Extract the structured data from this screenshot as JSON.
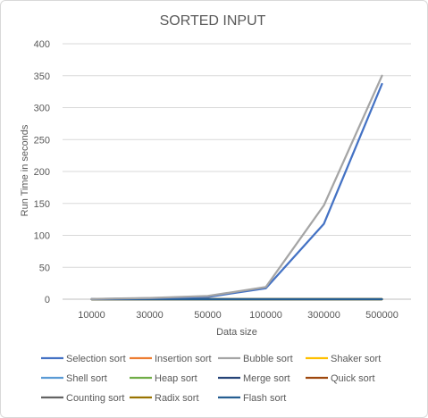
{
  "chart_data": {
    "type": "line",
    "title": "SORTED INPUT",
    "xlabel": "Data size",
    "ylabel": "Run Time in seconds",
    "categories": [
      "10000",
      "30000",
      "50000",
      "100000",
      "300000",
      "500000"
    ],
    "ylim": [
      0,
      400
    ],
    "yticks": [
      0,
      50,
      100,
      150,
      200,
      250,
      300,
      350,
      400
    ],
    "grid": true,
    "legend_position": "bottom",
    "series": [
      {
        "name": "Selection sort",
        "color": "#4472c4",
        "values": [
          0.3,
          1.5,
          3.5,
          17,
          118,
          337
        ]
      },
      {
        "name": "Insertion sort",
        "color": "#ed7d31",
        "values": [
          0,
          0,
          0,
          0,
          0,
          0
        ]
      },
      {
        "name": "Bubble sort",
        "color": "#a5a5a5",
        "values": [
          0.4,
          2,
          5,
          19,
          147,
          350
        ]
      },
      {
        "name": "Shaker sort",
        "color": "#ffc000",
        "values": [
          0,
          0,
          0,
          0,
          0,
          0
        ]
      },
      {
        "name": "Shell sort",
        "color": "#5b9bd5",
        "values": [
          0,
          0,
          0,
          0,
          0,
          0
        ]
      },
      {
        "name": "Heap sort",
        "color": "#70ad47",
        "values": [
          0,
          0,
          0,
          0,
          0,
          0
        ]
      },
      {
        "name": "Merge sort",
        "color": "#264478",
        "values": [
          0,
          0,
          0,
          0,
          0,
          0
        ]
      },
      {
        "name": "Quick sort",
        "color": "#9e480e",
        "values": [
          0,
          0,
          0,
          0,
          0,
          0
        ]
      },
      {
        "name": "Counting sort",
        "color": "#636363",
        "values": [
          0,
          0,
          0,
          0,
          0,
          0
        ]
      },
      {
        "name": "Radix sort",
        "color": "#997300",
        "values": [
          0,
          0,
          0,
          0,
          0,
          0
        ]
      },
      {
        "name": "Flash sort",
        "color": "#255e91",
        "values": [
          0,
          0,
          0,
          0,
          0,
          0
        ]
      }
    ]
  }
}
